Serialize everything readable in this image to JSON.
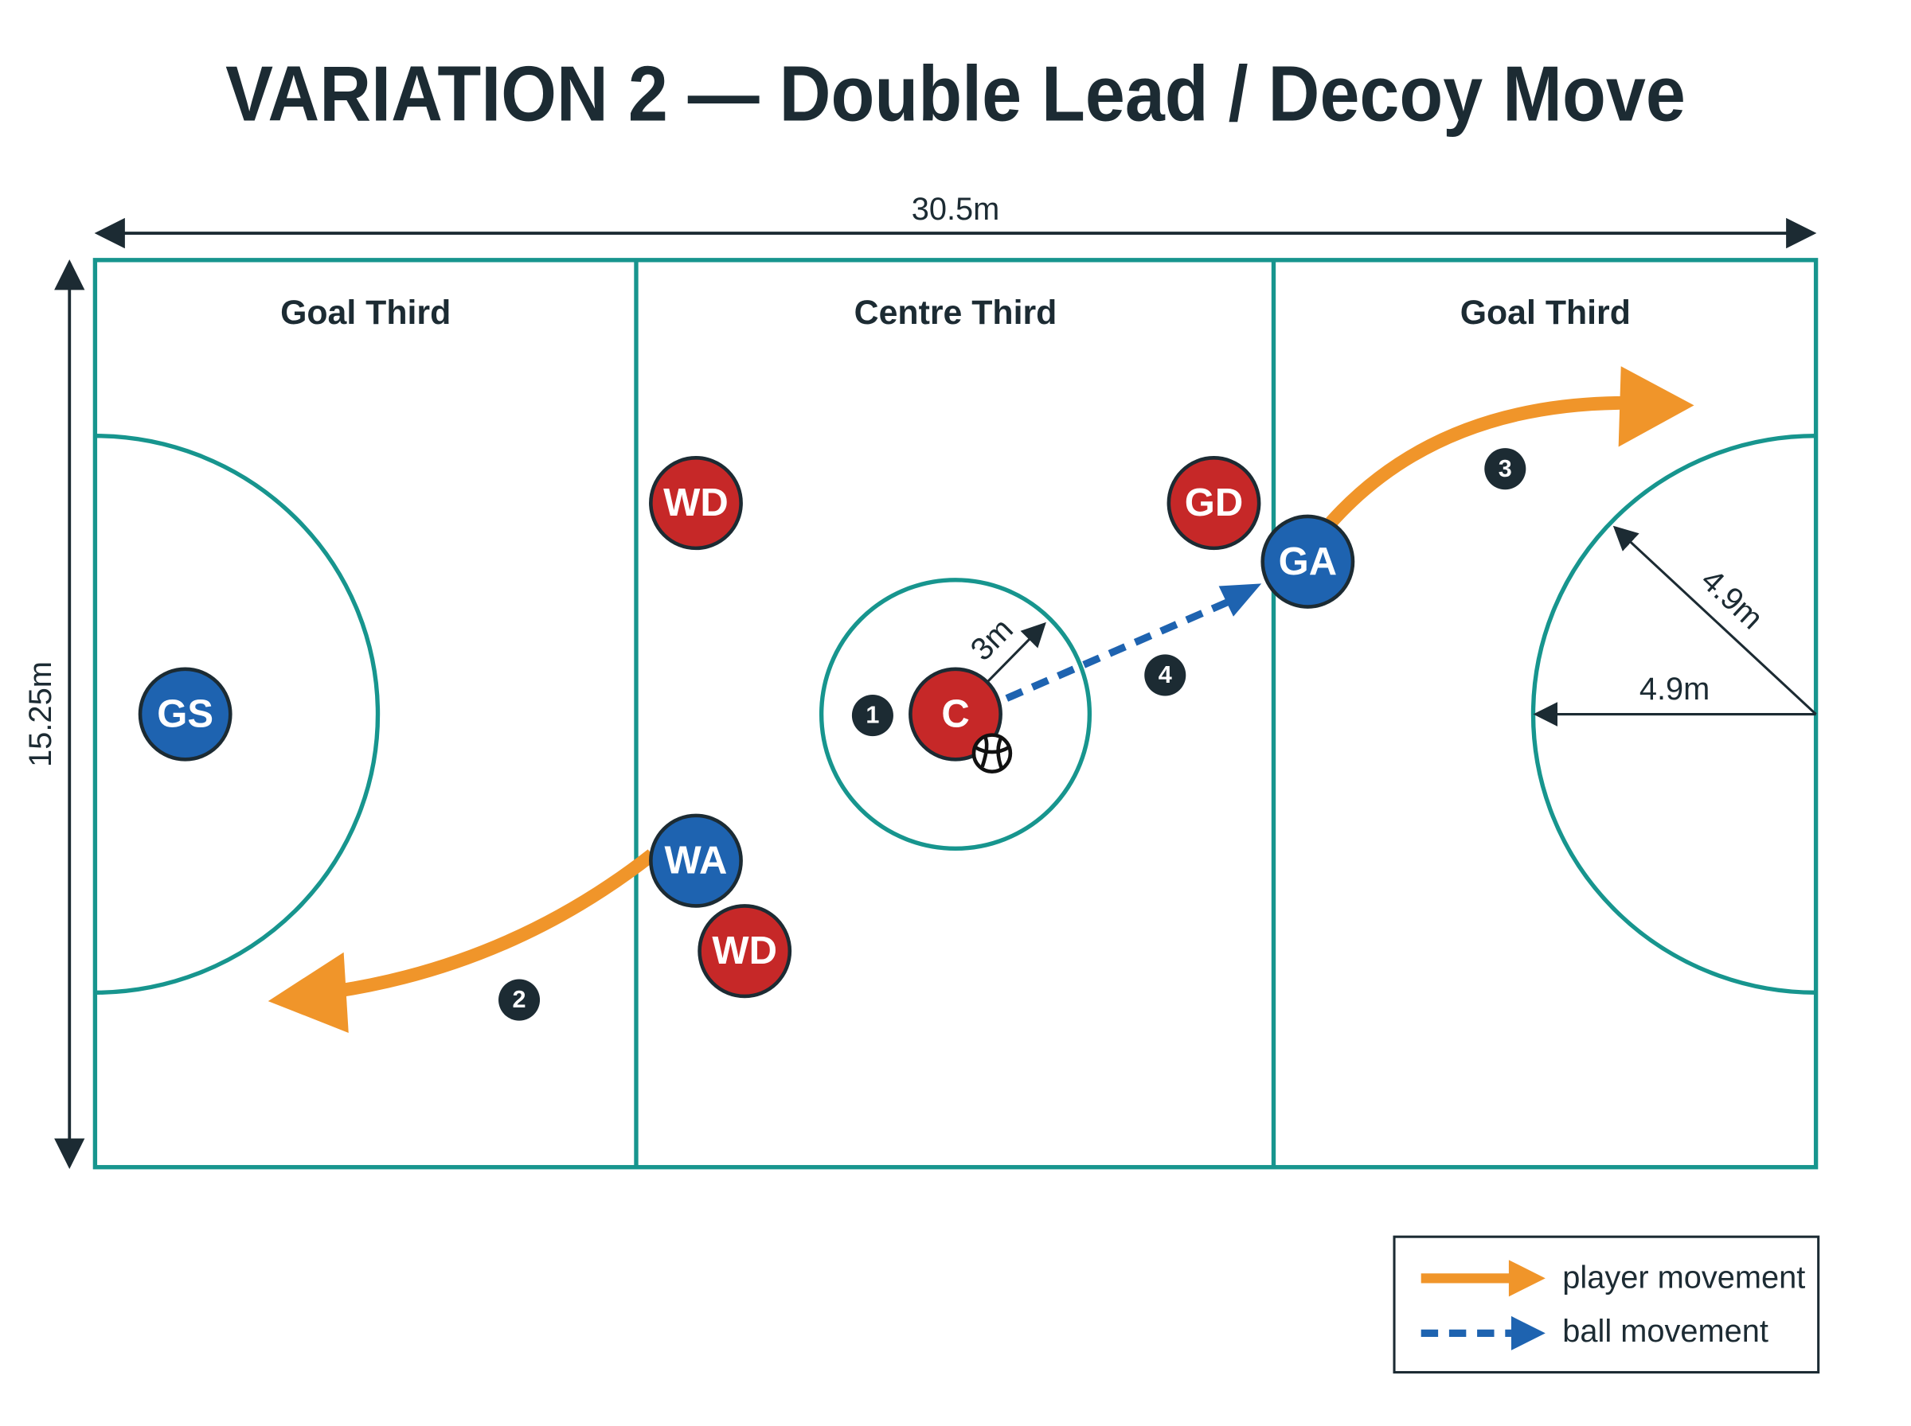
{
  "title": "VARIATION 2 — Double Lead / Decoy Move",
  "court": {
    "length_label": "30.5m",
    "width_label": "15.25m",
    "thirds": [
      "Goal Third",
      "Centre Third",
      "Goal Third"
    ],
    "centre_radius_label": "3m",
    "goal_radius_labels": [
      "4.9m",
      "4.9m"
    ]
  },
  "players": [
    {
      "label": "WD",
      "color": "#c62828"
    },
    {
      "label": "GD",
      "color": "#c62828"
    },
    {
      "label": "GA",
      "color": "#1e63b0"
    },
    {
      "label": "GS",
      "color": "#1e63b0"
    },
    {
      "label": "C",
      "color": "#c62828"
    },
    {
      "label": "WA",
      "color": "#1e63b0"
    },
    {
      "label": "WD",
      "color": "#c62828"
    }
  ],
  "steps": [
    "1",
    "2",
    "3",
    "4"
  ],
  "legend": [
    {
      "label": "player movement",
      "color": "#f0952a"
    },
    {
      "label": "ball movement",
      "color": "#1e63b0"
    }
  ]
}
